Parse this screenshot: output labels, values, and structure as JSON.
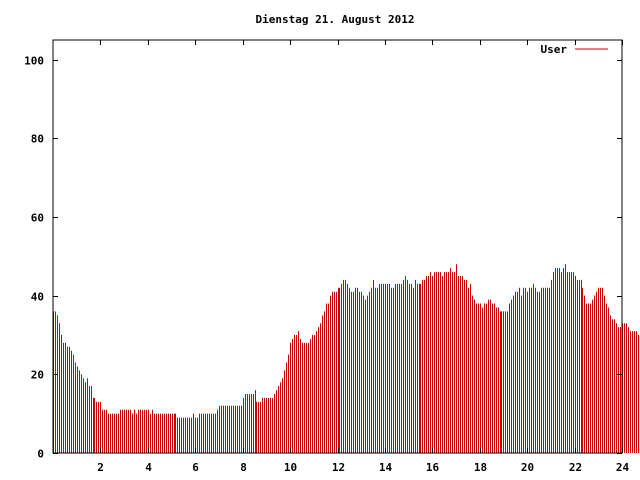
{
  "chart_data": {
    "type": "bar",
    "title": "Dienstag 21. August 2012",
    "xlabel": "",
    "ylabel": "",
    "xlim": [
      0,
      24
    ],
    "ylim": [
      0,
      105
    ],
    "x_ticks": [
      2,
      4,
      6,
      8,
      10,
      12,
      14,
      16,
      18,
      20,
      22,
      24
    ],
    "x_tick_labels": [
      "2",
      "4",
      "6",
      "8",
      "10",
      "12",
      "14",
      "16",
      "18",
      "20",
      "22",
      "24"
    ],
    "y_ticks": [
      0,
      20,
      40,
      60,
      80,
      100
    ],
    "y_tick_labels": [
      "0",
      "20",
      "40",
      "60",
      "80",
      "100"
    ],
    "grid": false,
    "legend": {
      "placement": "top-right",
      "entries": [
        "User"
      ]
    },
    "color": "#cc0000",
    "interval_minutes": 5,
    "series": [
      {
        "name": "User",
        "values": [
          36,
          36,
          35,
          33,
          30,
          28,
          28,
          27,
          27,
          26,
          25,
          23,
          22,
          21,
          20,
          19,
          18,
          19,
          17,
          17,
          14,
          14,
          13,
          13,
          13,
          11,
          11,
          11,
          10,
          10,
          10,
          10,
          10,
          10,
          11,
          11,
          11,
          11,
          11,
          11,
          10,
          11,
          10,
          11,
          11,
          11,
          11,
          11,
          11,
          10,
          11,
          10,
          10,
          10,
          10,
          10,
          10,
          10,
          10,
          10,
          10,
          10,
          10,
          9,
          9,
          9,
          9,
          9,
          9,
          9,
          9,
          10,
          9,
          9,
          10,
          10,
          10,
          10,
          10,
          10,
          10,
          10,
          10,
          11,
          12,
          12,
          12,
          12,
          12,
          12,
          12,
          12,
          12,
          12,
          12,
          12,
          14,
          15,
          15,
          15,
          15,
          15,
          16,
          13,
          13,
          13,
          14,
          14,
          14,
          14,
          14,
          14,
          15,
          16,
          17,
          18,
          19,
          21,
          23,
          25,
          28,
          29,
          30,
          30,
          31,
          29,
          28,
          28,
          28,
          28,
          29,
          30,
          30,
          31,
          32,
          33,
          35,
          36,
          38,
          38,
          40,
          41,
          41,
          41,
          42,
          42,
          43,
          44,
          44,
          43,
          42,
          41,
          41,
          42,
          42,
          41,
          41,
          40,
          39,
          40,
          41,
          42,
          44,
          42,
          42,
          43,
          43,
          43,
          43,
          43,
          43,
          42,
          42,
          43,
          43,
          43,
          43,
          44,
          45,
          44,
          43,
          43,
          42,
          44,
          43,
          43,
          43,
          44,
          44,
          45,
          45,
          46,
          45,
          46,
          46,
          46,
          46,
          45,
          46,
          46,
          46,
          47,
          46,
          46,
          48,
          45,
          45,
          45,
          44,
          44,
          42,
          43,
          40,
          39,
          38,
          38,
          38,
          37,
          38,
          38,
          39,
          39,
          38,
          38,
          37,
          37,
          36,
          36,
          36,
          36,
          36,
          38,
          39,
          40,
          41,
          41,
          42,
          40,
          42,
          42,
          41,
          42,
          42,
          43,
          42,
          41,
          41,
          42,
          42,
          42,
          42,
          42,
          44,
          46,
          47,
          47,
          47,
          46,
          47,
          48,
          46,
          46,
          46,
          46,
          45,
          44,
          44,
          44,
          42,
          40,
          38,
          38,
          38,
          39,
          40,
          41,
          42,
          42,
          42,
          40,
          38,
          37,
          35,
          34,
          34,
          33,
          32,
          32,
          33,
          33,
          33,
          32,
          31,
          31,
          31,
          31,
          30,
          30,
          30,
          29
        ]
      }
    ]
  }
}
